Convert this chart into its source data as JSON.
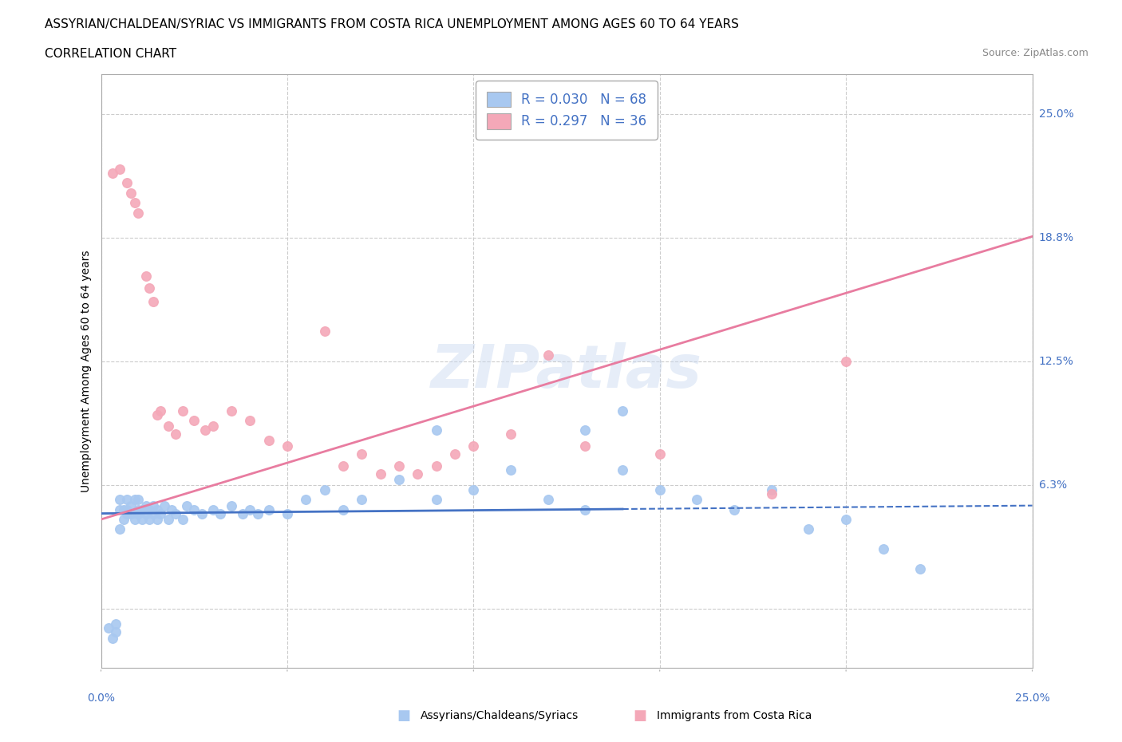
{
  "title_line1": "ASSYRIAN/CHALDEAN/SYRIAC VS IMMIGRANTS FROM COSTA RICA UNEMPLOYMENT AMONG AGES 60 TO 64 YEARS",
  "title_line2": "CORRELATION CHART",
  "source": "Source: ZipAtlas.com",
  "ylabel": "Unemployment Among Ages 60 to 64 years",
  "legend_label1": "R = 0.030   N = 68",
  "legend_label2": "R = 0.297   N = 36",
  "legend_name1": "Assyrians/Chaldeans/Syriacs",
  "legend_name2": "Immigrants from Costa Rica",
  "color1": "#a8c8f0",
  "color2": "#f4a8b8",
  "line_color1": "#4472c4",
  "line_color2": "#e87ca0",
  "watermark": "ZIPatlas",
  "xlim": [
    0.0,
    0.25
  ],
  "ylim": [
    -0.03,
    0.27
  ],
  "blue_line_start_y": 0.048,
  "blue_line_end_y": 0.052,
  "pink_line_start_y": 0.045,
  "pink_line_end_y": 0.188,
  "blue_x": [
    0.002,
    0.003,
    0.004,
    0.004,
    0.005,
    0.005,
    0.005,
    0.006,
    0.006,
    0.007,
    0.007,
    0.007,
    0.008,
    0.008,
    0.009,
    0.009,
    0.01,
    0.01,
    0.01,
    0.011,
    0.011,
    0.012,
    0.012,
    0.013,
    0.013,
    0.014,
    0.014,
    0.015,
    0.015,
    0.016,
    0.017,
    0.018,
    0.019,
    0.02,
    0.022,
    0.023,
    0.025,
    0.027,
    0.03,
    0.032,
    0.035,
    0.038,
    0.04,
    0.042,
    0.045,
    0.05,
    0.055,
    0.06,
    0.065,
    0.07,
    0.08,
    0.09,
    0.1,
    0.11,
    0.12,
    0.13,
    0.14,
    0.15,
    0.16,
    0.17,
    0.18,
    0.19,
    0.2,
    0.21,
    0.22,
    0.13,
    0.14,
    0.09
  ],
  "blue_y": [
    -0.01,
    -0.015,
    -0.012,
    -0.008,
    0.04,
    0.05,
    0.055,
    0.045,
    0.05,
    0.048,
    0.05,
    0.055,
    0.048,
    0.052,
    0.045,
    0.055,
    0.05,
    0.048,
    0.055,
    0.045,
    0.05,
    0.048,
    0.052,
    0.045,
    0.05,
    0.048,
    0.052,
    0.045,
    0.05,
    0.048,
    0.052,
    0.045,
    0.05,
    0.048,
    0.045,
    0.052,
    0.05,
    0.048,
    0.05,
    0.048,
    0.052,
    0.048,
    0.05,
    0.048,
    0.05,
    0.048,
    0.055,
    0.06,
    0.05,
    0.055,
    0.065,
    0.055,
    0.06,
    0.07,
    0.055,
    0.05,
    0.07,
    0.06,
    0.055,
    0.05,
    0.06,
    0.04,
    0.045,
    0.03,
    0.02,
    0.09,
    0.1,
    0.09
  ],
  "pink_x": [
    0.003,
    0.005,
    0.007,
    0.008,
    0.009,
    0.01,
    0.012,
    0.013,
    0.014,
    0.015,
    0.016,
    0.018,
    0.02,
    0.022,
    0.025,
    0.028,
    0.03,
    0.035,
    0.04,
    0.045,
    0.05,
    0.06,
    0.065,
    0.07,
    0.075,
    0.08,
    0.085,
    0.09,
    0.095,
    0.1,
    0.11,
    0.12,
    0.13,
    0.15,
    0.18,
    0.2
  ],
  "pink_y": [
    0.22,
    0.222,
    0.215,
    0.21,
    0.205,
    0.2,
    0.168,
    0.162,
    0.155,
    0.098,
    0.1,
    0.092,
    0.088,
    0.1,
    0.095,
    0.09,
    0.092,
    0.1,
    0.095,
    0.085,
    0.082,
    0.14,
    0.072,
    0.078,
    0.068,
    0.072,
    0.068,
    0.072,
    0.078,
    0.082,
    0.088,
    0.128,
    0.082,
    0.078,
    0.058,
    0.125
  ]
}
